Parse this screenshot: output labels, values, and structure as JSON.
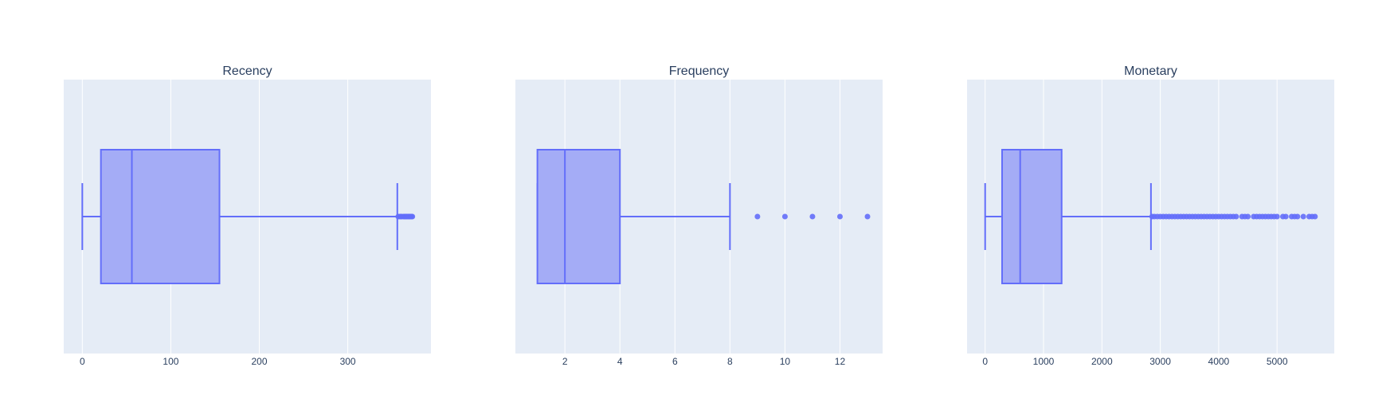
{
  "chart_data": [
    {
      "type": "box",
      "title": "Recency",
      "orientation": "horizontal",
      "xlim": [
        -21,
        394
      ],
      "ticks": [
        0,
        100,
        200,
        300
      ],
      "tick_labels": [
        "0",
        "100",
        "200",
        "300"
      ],
      "grid": true,
      "min": 0,
      "q1": 21,
      "median": 56,
      "q3": 155,
      "max": 356,
      "outliers": [
        357,
        359,
        360,
        361,
        363,
        364,
        365,
        366,
        367,
        368,
        369,
        370,
        371,
        372,
        373
      ]
    },
    {
      "type": "box",
      "title": "Frequency",
      "orientation": "horizontal",
      "xlim": [
        0.2,
        13.55
      ],
      "ticks": [
        2,
        4,
        6,
        8,
        10,
        12
      ],
      "tick_labels": [
        "2",
        "4",
        "6",
        "8",
        "10",
        "12"
      ],
      "grid": true,
      "min": 1,
      "q1": 1,
      "median": 2,
      "q3": 4,
      "max": 8,
      "outliers": [
        9,
        10,
        11,
        12,
        13
      ]
    },
    {
      "type": "box",
      "title": "Monetary",
      "orientation": "horizontal",
      "xlim": [
        -310,
        5980
      ],
      "ticks": [
        0,
        1000,
        2000,
        3000,
        4000,
        5000
      ],
      "tick_labels": [
        "0",
        "1000",
        "2000",
        "3000",
        "4000",
        "5000"
      ],
      "grid": true,
      "min": 0,
      "q1": 290,
      "median": 600,
      "q3": 1310,
      "max": 2840,
      "outliers": [
        2860,
        2900,
        2950,
        3000,
        3050,
        3100,
        3150,
        3200,
        3250,
        3300,
        3350,
        3400,
        3450,
        3500,
        3550,
        3600,
        3650,
        3700,
        3750,
        3800,
        3850,
        3900,
        3950,
        4000,
        4050,
        4100,
        4150,
        4200,
        4250,
        4300,
        4400,
        4450,
        4500,
        4600,
        4650,
        4700,
        4750,
        4800,
        4850,
        4900,
        4950,
        5000,
        5100,
        5150,
        5250,
        5300,
        5350,
        5450,
        5550,
        5600,
        5650
      ]
    }
  ],
  "colors": {
    "plot_bg": "#e5ecf6",
    "grid": "#ffffff",
    "box_line": "#636efa",
    "box_fill": "#a4acf6",
    "text": "#2a3f5f"
  }
}
